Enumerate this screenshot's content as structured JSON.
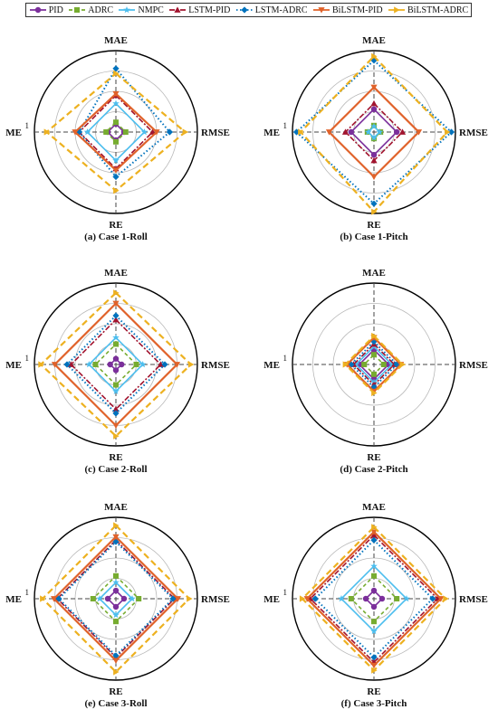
{
  "colors": {
    "PID": "#7b2f9b",
    "ADRC": "#77ac30",
    "NMPC": "#4dbeee",
    "LSTM-PID": "#a2142f",
    "LSTM-ADRC": "#0072bd",
    "BiLSTM-PID": "#e0622a",
    "BiLSTM-ADRC": "#edb120"
  },
  "chart_data": [
    {
      "type": "radar",
      "title": "(a) Case 1-Roll",
      "axes": [
        "MAE",
        "RMSE",
        "RE",
        "ME"
      ],
      "rmax": 1,
      "r_tick_label": "1",
      "grid": true,
      "legend_position": "top",
      "series": [
        {
          "name": "PID",
          "values": [
            0.1,
            0.1,
            0.1,
            0.1
          ]
        },
        {
          "name": "ADRC",
          "values": [
            0.12,
            0.12,
            0.12,
            0.12
          ]
        },
        {
          "name": "NMPC",
          "values": [
            0.35,
            0.35,
            0.35,
            0.35
          ]
        },
        {
          "name": "LSTM-PID",
          "values": [
            0.45,
            0.45,
            0.45,
            0.45
          ]
        },
        {
          "name": "LSTM-ADRC",
          "values": [
            0.78,
            0.66,
            0.55,
            0.45
          ]
        },
        {
          "name": "BiLSTM-PID",
          "values": [
            0.47,
            0.5,
            0.47,
            0.5
          ]
        },
        {
          "name": "BiLSTM-ADRC",
          "values": [
            0.72,
            0.85,
            0.72,
            0.85
          ]
        }
      ]
    },
    {
      "type": "radar",
      "title": "(b) Case 1-Pitch",
      "axes": [
        "MAE",
        "RMSE",
        "RE",
        "ME"
      ],
      "rmax": 1,
      "r_tick_label": "1",
      "grid": true,
      "legend_position": "top",
      "series": [
        {
          "name": "PID",
          "values": [
            0.28,
            0.28,
            0.28,
            0.28
          ]
        },
        {
          "name": "ADRC",
          "values": [
            0.08,
            0.08,
            0.08,
            0.08
          ]
        },
        {
          "name": "NMPC",
          "values": [
            0.07,
            0.07,
            0.07,
            0.07
          ]
        },
        {
          "name": "LSTM-PID",
          "values": [
            0.35,
            0.35,
            0.35,
            0.35
          ]
        },
        {
          "name": "LSTM-ADRC",
          "values": [
            0.88,
            0.95,
            0.88,
            0.95
          ]
        },
        {
          "name": "BiLSTM-PID",
          "values": [
            0.55,
            0.55,
            0.55,
            0.55
          ]
        },
        {
          "name": "BiLSTM-ADRC",
          "values": [
            0.93,
            0.9,
            0.98,
            0.9
          ]
        }
      ]
    },
    {
      "type": "radar",
      "title": "(c) Case 2-Roll",
      "axes": [
        "MAE",
        "RMSE",
        "RE",
        "ME"
      ],
      "rmax": 1,
      "r_tick_label": "1",
      "grid": true,
      "legend_position": "top",
      "series": [
        {
          "name": "PID",
          "values": [
            0.07,
            0.07,
            0.07,
            0.07
          ]
        },
        {
          "name": "ADRC",
          "values": [
            0.25,
            0.25,
            0.25,
            0.25
          ]
        },
        {
          "name": "NMPC",
          "values": [
            0.33,
            0.33,
            0.33,
            0.33
          ]
        },
        {
          "name": "LSTM-PID",
          "values": [
            0.55,
            0.55,
            0.55,
            0.55
          ]
        },
        {
          "name": "LSTM-ADRC",
          "values": [
            0.6,
            0.6,
            0.6,
            0.6
          ]
        },
        {
          "name": "BiLSTM-PID",
          "values": [
            0.75,
            0.75,
            0.75,
            0.75
          ]
        },
        {
          "name": "BiLSTM-ADRC",
          "values": [
            0.88,
            0.92,
            0.88,
            0.92
          ]
        }
      ]
    },
    {
      "type": "radar",
      "title": "(d) Case 2-Pitch",
      "axes": [
        "MAE",
        "RMSE",
        "RE",
        "ME"
      ],
      "rmax": 1,
      "r_tick_label": "1",
      "grid": true,
      "legend_position": "top",
      "series": [
        {
          "name": "PID",
          "values": [
            0.18,
            0.18,
            0.18,
            0.18
          ]
        },
        {
          "name": "ADRC",
          "values": [
            0.12,
            0.12,
            0.12,
            0.12
          ]
        },
        {
          "name": "NMPC",
          "values": [
            0.22,
            0.22,
            0.22,
            0.22
          ]
        },
        {
          "name": "LSTM-PID",
          "values": [
            0.25,
            0.25,
            0.25,
            0.25
          ]
        },
        {
          "name": "LSTM-ADRC",
          "values": [
            0.28,
            0.28,
            0.28,
            0.28
          ]
        },
        {
          "name": "BiLSTM-PID",
          "values": [
            0.33,
            0.33,
            0.33,
            0.33
          ]
        },
        {
          "name": "BiLSTM-ADRC",
          "values": [
            0.35,
            0.35,
            0.35,
            0.35
          ]
        }
      ]
    },
    {
      "type": "radar",
      "title": "(e) Case 3-Roll",
      "axes": [
        "MAE",
        "RMSE",
        "RE",
        "ME"
      ],
      "rmax": 1,
      "r_tick_label": "1",
      "grid": true,
      "legend_position": "top",
      "series": [
        {
          "name": "PID",
          "values": [
            0.1,
            0.1,
            0.1,
            0.1
          ]
        },
        {
          "name": "ADRC",
          "values": [
            0.28,
            0.28,
            0.28,
            0.28
          ]
        },
        {
          "name": "NMPC",
          "values": [
            0.2,
            0.2,
            0.2,
            0.2
          ]
        },
        {
          "name": "LSTM-PID",
          "values": [
            0.72,
            0.72,
            0.72,
            0.72
          ]
        },
        {
          "name": "LSTM-ADRC",
          "values": [
            0.7,
            0.7,
            0.7,
            0.7
          ]
        },
        {
          "name": "BiLSTM-PID",
          "values": [
            0.76,
            0.76,
            0.76,
            0.76
          ]
        },
        {
          "name": "BiLSTM-ADRC",
          "values": [
            0.9,
            0.9,
            0.9,
            0.9
          ]
        }
      ]
    },
    {
      "type": "radar",
      "title": "(f) Case 3-Pitch",
      "axes": [
        "MAE",
        "RMSE",
        "RE",
        "ME"
      ],
      "rmax": 1,
      "r_tick_label": "1",
      "grid": true,
      "legend_position": "top",
      "series": [
        {
          "name": "PID",
          "values": [
            0.1,
            0.1,
            0.1,
            0.1
          ]
        },
        {
          "name": "ADRC",
          "values": [
            0.28,
            0.28,
            0.28,
            0.28
          ]
        },
        {
          "name": "NMPC",
          "values": [
            0.4,
            0.4,
            0.4,
            0.4
          ]
        },
        {
          "name": "LSTM-PID",
          "values": [
            0.78,
            0.78,
            0.78,
            0.78
          ]
        },
        {
          "name": "LSTM-ADRC",
          "values": [
            0.72,
            0.72,
            0.72,
            0.72
          ]
        },
        {
          "name": "BiLSTM-PID",
          "values": [
            0.82,
            0.82,
            0.82,
            0.82
          ]
        },
        {
          "name": "BiLSTM-ADRC",
          "values": [
            0.88,
            0.88,
            0.88,
            0.88
          ]
        }
      ]
    }
  ]
}
